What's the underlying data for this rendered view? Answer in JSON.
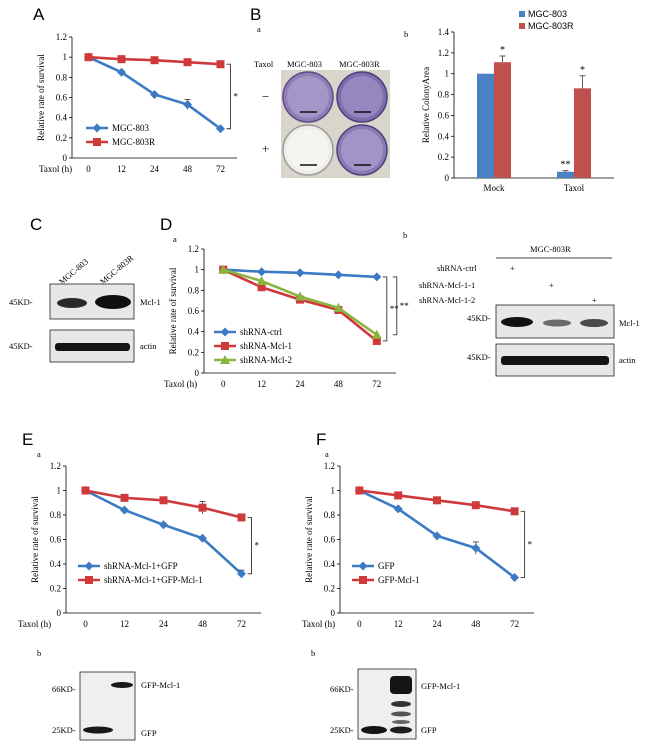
{
  "panels": {
    "A": "A",
    "B": "B",
    "C": "C",
    "D": "D",
    "E": "E",
    "F": "F"
  },
  "sub": {
    "a": "a",
    "b": "b"
  },
  "star": "*",
  "dstar": "**",
  "plus": "+",
  "minus": "−",
  "colors": {
    "blue": "#3c7bc4",
    "red": "#d0393a",
    "green": "#8ab43f",
    "bar_blue": "#4a82c3",
    "bar_red": "#c0504d",
    "bracket": "#333333"
  },
  "chart_data": [
    {
      "id": "A",
      "type": "line",
      "title": "",
      "xlabel": "Taxol (h)",
      "ylabel": "Relative rate of survival",
      "categories": [
        "0",
        "12",
        "24",
        "48",
        "72"
      ],
      "ylim": [
        0,
        1.2
      ],
      "yticks": [
        "0",
        "0.2",
        "0.4",
        "0.6",
        "0.8",
        "1",
        "1.2"
      ],
      "series": [
        {
          "name": "MGC-803",
          "color": "#3c7bc4",
          "marker": "diamond",
          "values": [
            1,
            0.85,
            0.63,
            0.53,
            0.29
          ],
          "err": [
            0,
            0,
            0,
            0.05,
            0
          ]
        },
        {
          "name": "MGC-803R",
          "color": "#d0393a",
          "marker": "square",
          "values": [
            1,
            0.98,
            0.97,
            0.95,
            0.93
          ],
          "err": [
            0,
            0,
            0,
            0,
            0
          ]
        }
      ],
      "annotation": "*"
    },
    {
      "id": "B-b",
      "type": "bar",
      "xlabel": "",
      "ylabel": "Relative ColonyArea",
      "categories": [
        "Mock",
        "Taxol"
      ],
      "ylim": [
        0,
        1.4
      ],
      "yticks": [
        "0",
        "0.2",
        "0.4",
        "0.6",
        "0.8",
        "1",
        "1.2",
        "1.4"
      ],
      "series": [
        {
          "name": "MGC-803",
          "color": "#4a82c3",
          "values": [
            1.0,
            0.06
          ],
          "err": [
            0,
            0.01
          ]
        },
        {
          "name": "MGC-803R",
          "color": "#c0504d",
          "values": [
            1.11,
            0.86
          ],
          "err": [
            0.06,
            0.12
          ]
        }
      ],
      "annotations": [
        "*",
        "**",
        "*"
      ]
    },
    {
      "id": "D-a",
      "type": "line",
      "xlabel": "Taxol (h)",
      "ylabel": "Relative rate of survival",
      "categories": [
        "0",
        "12",
        "24",
        "48",
        "72"
      ],
      "ylim": [
        0,
        1.2
      ],
      "yticks": [
        "0",
        "0.2",
        "0.4",
        "0.6",
        "0.8",
        "1",
        "1.2"
      ],
      "series": [
        {
          "name": "shRNA-ctrl",
          "color": "#3c7bc4",
          "marker": "diamond",
          "values": [
            1,
            0.98,
            0.97,
            0.95,
            0.93
          ]
        },
        {
          "name": "shRNA-Mcl-1",
          "color": "#d0393a",
          "marker": "square",
          "values": [
            1,
            0.83,
            0.71,
            0.61,
            0.31
          ]
        },
        {
          "name": "shRNA-Mcl-2",
          "color": "#8ab43f",
          "marker": "triangle",
          "values": [
            1,
            0.89,
            0.74,
            0.63,
            0.37
          ]
        }
      ],
      "annotations": [
        "**",
        "**"
      ]
    },
    {
      "id": "E-a",
      "type": "line",
      "xlabel": "Taxol (h)",
      "ylabel": "Relative rate of survival",
      "categories": [
        "0",
        "12",
        "24",
        "48",
        "72"
      ],
      "ylim": [
        0,
        1.2
      ],
      "yticks": [
        "0",
        "0.2",
        "0.4",
        "0.6",
        "0.8",
        "1",
        "1.2"
      ],
      "series": [
        {
          "name": "shRNA-Mcl-1+GFP",
          "color": "#3c7bc4",
          "marker": "diamond",
          "values": [
            1,
            0.84,
            0.72,
            0.61,
            0.32
          ],
          "err": [
            0,
            0,
            0,
            0,
            0.03
          ]
        },
        {
          "name": "shRNA-Mcl-1+GFP-Mcl-1",
          "color": "#d0393a",
          "marker": "square",
          "values": [
            1,
            0.94,
            0.92,
            0.86,
            0.78
          ],
          "err": [
            0,
            0,
            0,
            0.05,
            0
          ]
        }
      ],
      "annotation": "*"
    },
    {
      "id": "F-a",
      "type": "line",
      "xlabel": "Taxol (h)",
      "ylabel": "Relative rate of survival",
      "categories": [
        "0",
        "12",
        "24",
        "48",
        "72"
      ],
      "ylim": [
        0,
        1.2
      ],
      "yticks": [
        "0",
        "0.2",
        "0.4",
        "0.6",
        "0.8",
        "1",
        "1.2"
      ],
      "series": [
        {
          "name": "GFP",
          "color": "#3c7bc4",
          "marker": "diamond",
          "values": [
            1,
            0.85,
            0.63,
            0.53,
            0.29
          ],
          "err": [
            0,
            0,
            0,
            0.05,
            0
          ]
        },
        {
          "name": "GFP-Mcl-1",
          "color": "#d0393a",
          "marker": "square",
          "values": [
            1,
            0.96,
            0.92,
            0.88,
            0.83
          ],
          "err": [
            0,
            0,
            0,
            0,
            0
          ]
        }
      ],
      "annotation": "*"
    }
  ],
  "colony": {
    "taxol_label": "Taxol",
    "col1": "MGC-803",
    "col2": "MGC-803R"
  },
  "blots": {
    "C": {
      "lanes": [
        "MGC-803",
        "MGC-803R"
      ],
      "mw1": "45KD-",
      "mw2": "45KD-",
      "band1": "Mcl-1",
      "band2": "actin"
    },
    "D": {
      "header": "MGC-803R",
      "rows": [
        "shRNA-ctrl",
        "shRNA-Mcl-1-1",
        "shRNA-Mcl-1-2"
      ],
      "mw1": "45KD-",
      "mw2": "45KD-",
      "band1": "Mcl-1",
      "band2": "actin"
    },
    "E": {
      "mw1": "66KD-",
      "mw2": "25KD-",
      "band1": "GFP-Mcl-1",
      "band2": "GFP"
    },
    "F": {
      "mw1": "66KD-",
      "mw2": "25KD-",
      "band1": "GFP-Mcl-1",
      "band2": "GFP"
    }
  }
}
